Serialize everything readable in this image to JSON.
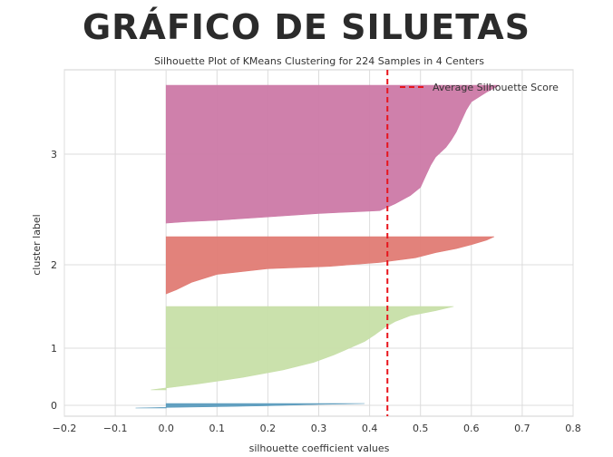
{
  "banner": {
    "title": "GRÁFICO DE SILUETAS"
  },
  "chart_data": {
    "type": "area",
    "title": "Silhouette Plot of KMeans Clustering for 224 Samples in 4 Centers",
    "xlabel": "silhouette coefficient values",
    "ylabel": "cluster label",
    "xlim": [
      -0.2,
      0.8
    ],
    "xticks": [
      -0.2,
      -0.1,
      0.0,
      0.1,
      0.2,
      0.3,
      0.4,
      0.5,
      0.6,
      0.7,
      0.8
    ],
    "xtick_labels": [
      "−0.2",
      "−0.1",
      "0.0",
      "0.1",
      "0.2",
      "0.3",
      "0.4",
      "0.5",
      "0.6",
      "0.7",
      "0.8"
    ],
    "ytick_labels": [
      "0",
      "1",
      "2",
      "3"
    ],
    "grid": true,
    "legend": {
      "label": "Average Silhouette Score",
      "position": "top-right"
    },
    "average_silhouette_score": 0.435,
    "clusters": [
      {
        "label": "0",
        "color": "#5b9bbd",
        "silhouette_profile": [
          [
            0.39,
            1
          ],
          [
            0.3,
            0.8
          ],
          [
            0.2,
            0.5
          ],
          [
            0.1,
            0.3
          ],
          [
            0.0,
            0.15
          ],
          [
            -0.06,
            0
          ]
        ]
      },
      {
        "label": "1",
        "color": "#c7dfa8",
        "silhouette_profile": [
          [
            0.565,
            1
          ],
          [
            0.53,
            0.95
          ],
          [
            0.48,
            0.89
          ],
          [
            0.45,
            0.82
          ],
          [
            0.43,
            0.75
          ],
          [
            0.41,
            0.66
          ],
          [
            0.39,
            0.58
          ],
          [
            0.36,
            0.5
          ],
          [
            0.33,
            0.42
          ],
          [
            0.29,
            0.33
          ],
          [
            0.23,
            0.24
          ],
          [
            0.15,
            0.15
          ],
          [
            0.06,
            0.07
          ],
          [
            -0.03,
            0
          ]
        ]
      },
      {
        "label": "2",
        "color": "#e07b74",
        "silhouette_profile": [
          [
            0.645,
            1
          ],
          [
            0.63,
            0.94
          ],
          [
            0.6,
            0.86
          ],
          [
            0.57,
            0.79
          ],
          [
            0.53,
            0.72
          ],
          [
            0.49,
            0.63
          ],
          [
            0.42,
            0.55
          ],
          [
            0.32,
            0.48
          ],
          [
            0.2,
            0.44
          ],
          [
            0.1,
            0.34
          ],
          [
            0.05,
            0.2
          ],
          [
            0.02,
            0.07
          ],
          [
            0.0,
            0
          ]
        ]
      },
      {
        "label": "3",
        "color": "#cc79a7",
        "silhouette_profile": [
          [
            0.655,
            1
          ],
          [
            0.63,
            0.95
          ],
          [
            0.6,
            0.88
          ],
          [
            0.59,
            0.82
          ],
          [
            0.58,
            0.74
          ],
          [
            0.57,
            0.66
          ],
          [
            0.56,
            0.6
          ],
          [
            0.55,
            0.55
          ],
          [
            0.53,
            0.48
          ],
          [
            0.52,
            0.42
          ],
          [
            0.51,
            0.34
          ],
          [
            0.5,
            0.26
          ],
          [
            0.48,
            0.2
          ],
          [
            0.45,
            0.14
          ],
          [
            0.42,
            0.09
          ],
          [
            0.3,
            0.07
          ],
          [
            0.18,
            0.04
          ],
          [
            0.1,
            0.02
          ],
          [
            0.04,
            0.01
          ],
          [
            0.0,
            0
          ]
        ]
      }
    ]
  }
}
